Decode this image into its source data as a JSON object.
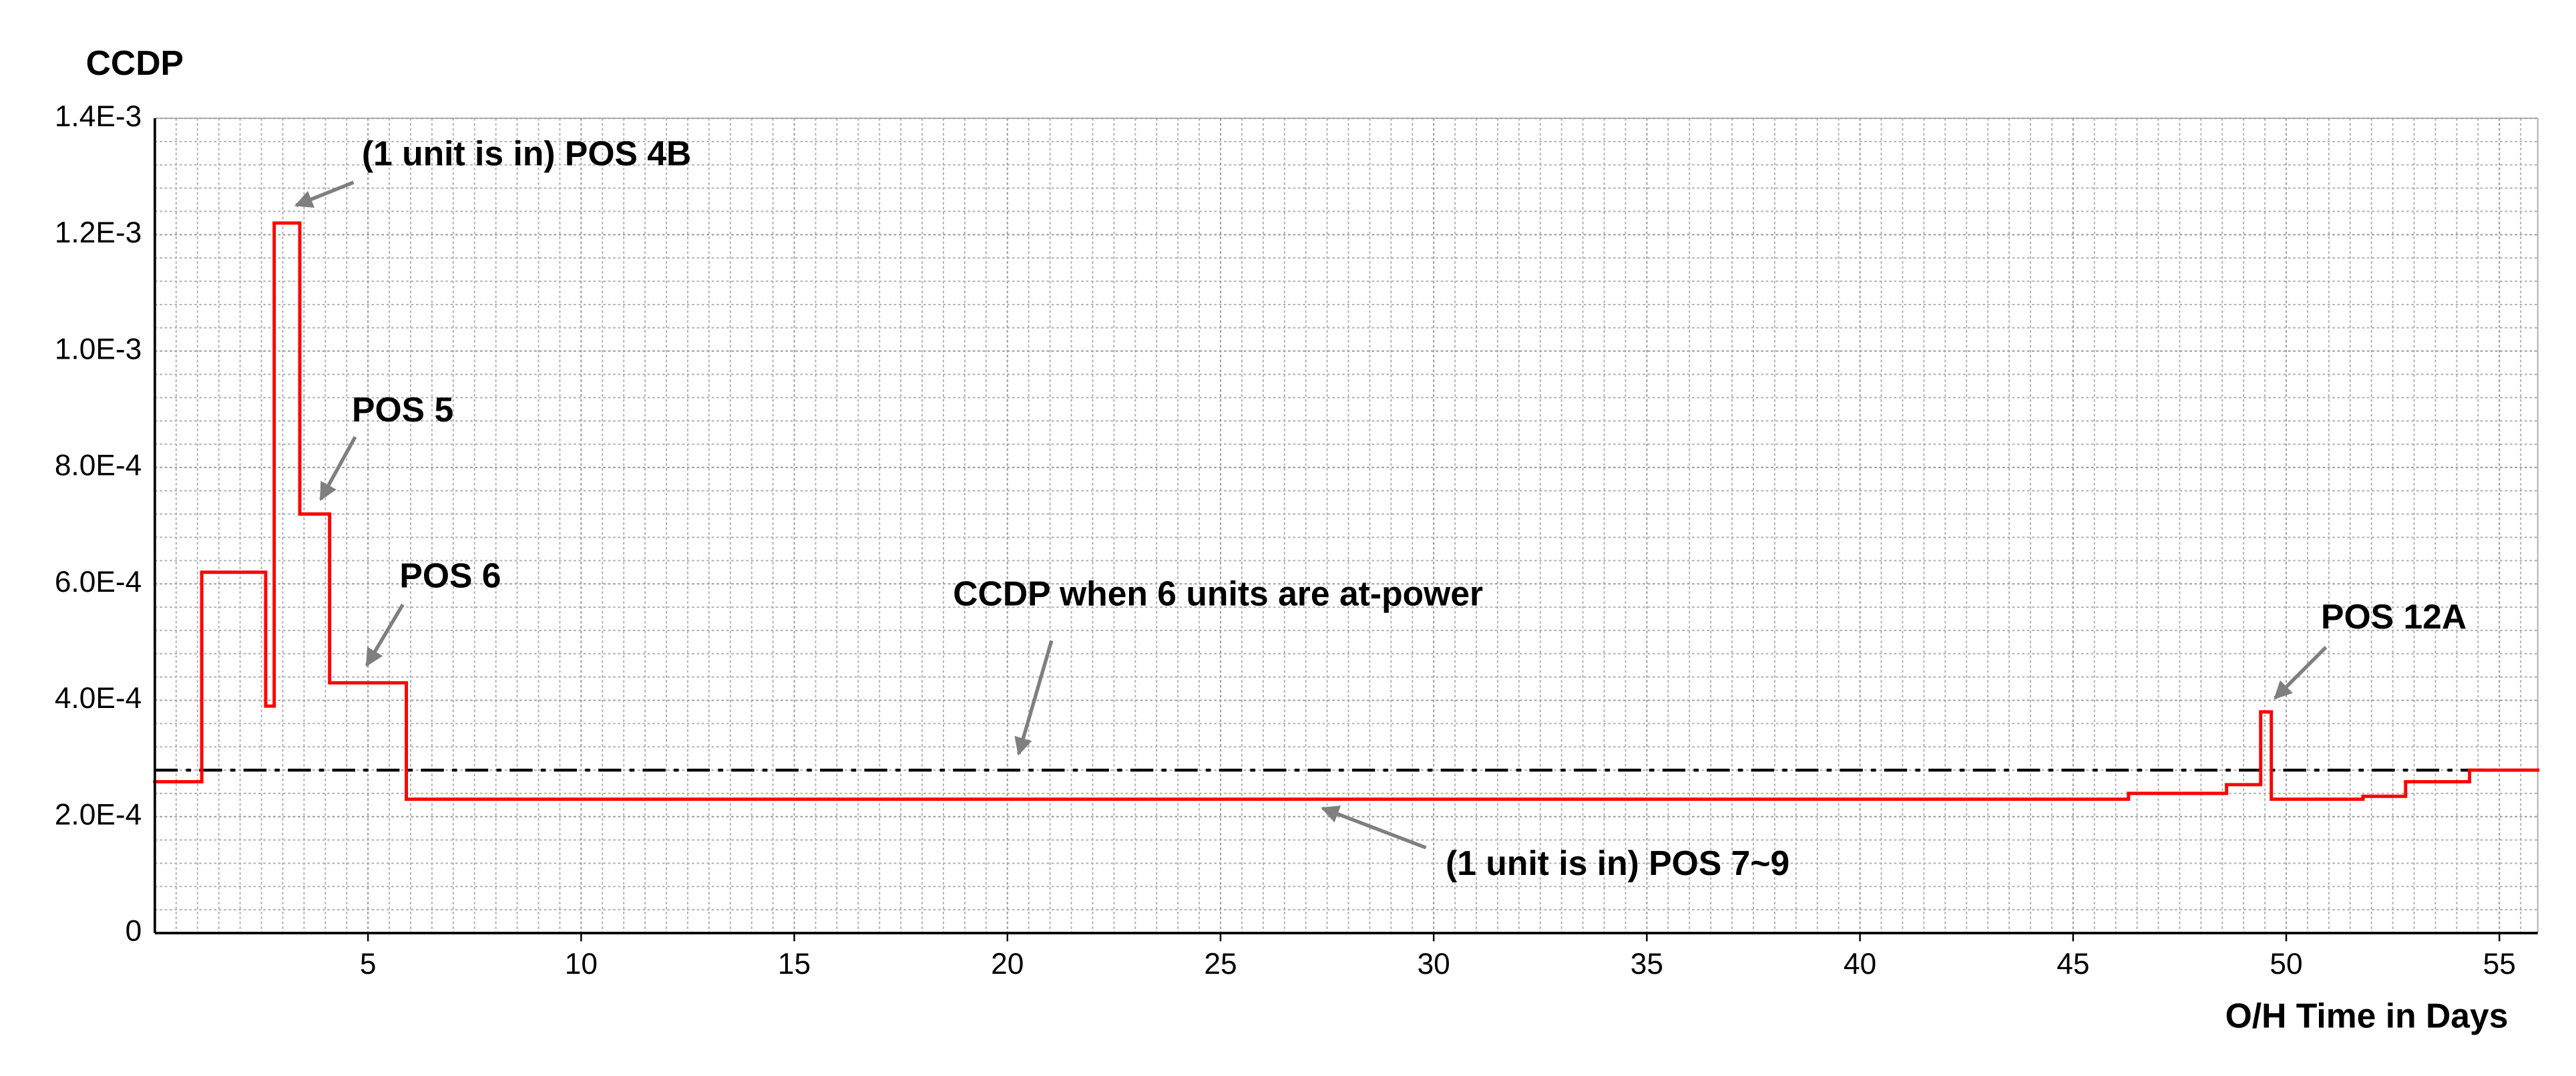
{
  "chart_data": {
    "type": "step",
    "y_label": "CCDP",
    "x_label": "O/H Time in Days",
    "x": [
      0,
      1.1,
      2.6,
      2.8,
      3.4,
      4.1,
      5.9,
      46.3,
      48.6,
      49.4,
      49.65,
      51.8,
      52.8,
      54.3
    ],
    "series": [
      {
        "name": "CCDP",
        "color": "#ff0000",
        "values": [
          0.00026,
          0.00062,
          0.00039,
          0.00122,
          0.00072,
          0.00043,
          0.00023,
          0.00024,
          0.000255,
          0.00038,
          0.00023,
          0.000235,
          0.00026,
          0.00028
        ]
      }
    ],
    "reference_line": {
      "value": 0.00028,
      "label": "CCDP when 6 units are at-power",
      "color": "#000000"
    },
    "annotations": [
      "(1 unit is in) POS 4B",
      "POS 5",
      "POS 6",
      "(1 unit is in) POS 7~9",
      "POS 12A"
    ],
    "xlim": [
      0,
      55.9
    ],
    "ylim": [
      0,
      0.0014
    ],
    "xticks": [
      5,
      10,
      15,
      20,
      25,
      30,
      35,
      40,
      45,
      50,
      55
    ],
    "yticks": [
      0,
      {
        "value": 0.0002,
        "label": "2.0E-4"
      },
      {
        "value": 0.0004,
        "label": "4.0E-4"
      },
      {
        "value": 0.0006,
        "label": "6.0E-4"
      },
      {
        "value": 0.0008,
        "label": "8.0E-4"
      },
      {
        "value": 0.001,
        "label": "1.0E-3"
      },
      {
        "value": 0.0012,
        "label": "1.2E-3"
      },
      {
        "value": 0.0014,
        "label": "1.4E-3"
      }
    ],
    "grid": true
  }
}
